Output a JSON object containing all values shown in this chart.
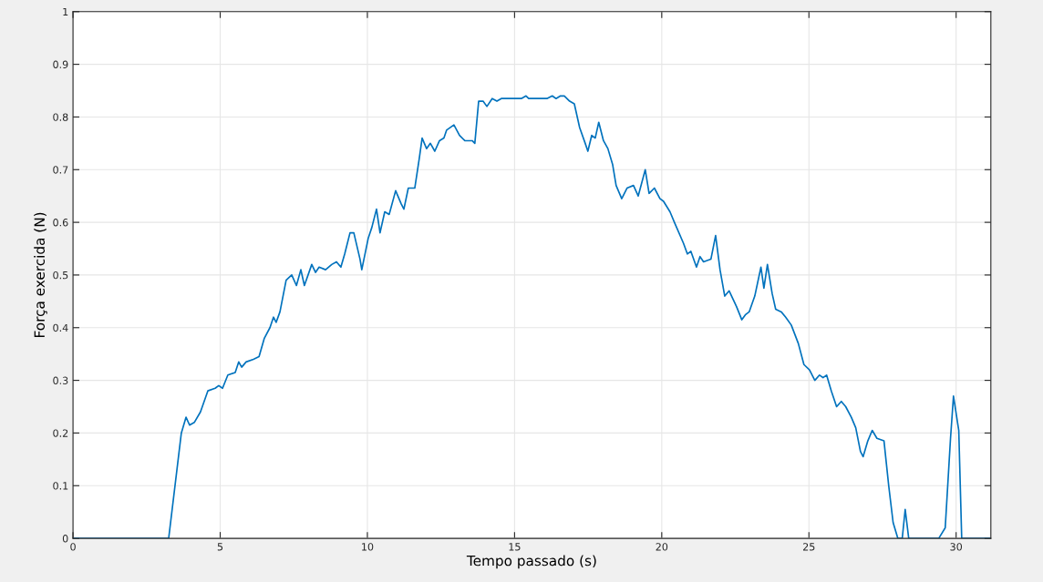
{
  "chart_data": {
    "type": "line",
    "xlabel": "Tempo passado (s)",
    "ylabel": "Força exercida (N)",
    "x": [
      0,
      3.25,
      3.68,
      3.84,
      3.96,
      4.12,
      4.33,
      4.58,
      4.83,
      4.95,
      5.08,
      5.26,
      5.51,
      5.63,
      5.73,
      5.88,
      6.13,
      6.32,
      6.5,
      6.69,
      6.81,
      6.9,
      7.03,
      7.24,
      7.43,
      7.59,
      7.74,
      7.86,
      8.11,
      8.24,
      8.36,
      8.58,
      8.79,
      8.95,
      9.1,
      9.23,
      9.41,
      9.54,
      9.75,
      9.81,
      10.03,
      10.15,
      10.31,
      10.43,
      10.59,
      10.74,
      10.96,
      11.15,
      11.24,
      11.39,
      11.61,
      11.76,
      11.86,
      12.01,
      12.14,
      12.29,
      12.45,
      12.6,
      12.69,
      12.94,
      13.13,
      13.31,
      13.56,
      13.65,
      13.78,
      13.93,
      14.06,
      14.24,
      14.4,
      14.55,
      15.23,
      15.39,
      15.48,
      16.1,
      16.28,
      16.41,
      16.56,
      16.69,
      16.87,
      17.03,
      17.21,
      17.4,
      17.49,
      17.62,
      17.74,
      17.86,
      18.02,
      18.17,
      18.33,
      18.45,
      18.64,
      18.82,
      19.04,
      19.2,
      19.44,
      19.57,
      19.75,
      19.94,
      20.06,
      20.28,
      20.43,
      20.74,
      20.87,
      20.99,
      21.18,
      21.3,
      21.42,
      21.67,
      21.83,
      21.98,
      22.14,
      22.29,
      22.54,
      22.72,
      22.85,
      22.97,
      23.16,
      23.37,
      23.47,
      23.59,
      23.75,
      23.87,
      24.06,
      24.21,
      24.4,
      24.64,
      24.83,
      25.02,
      25.2,
      25.36,
      25.48,
      25.6,
      25.76,
      25.94,
      26.1,
      26.25,
      26.44,
      26.59,
      26.75,
      26.84,
      27.0,
      27.15,
      27.31,
      27.55,
      27.71,
      27.86,
      28.02,
      28.17,
      28.27,
      28.39,
      29.41,
      29.63,
      29.81,
      29.91,
      30.09,
      30.19,
      31.18
    ],
    "series": [
      {
        "color": "#0072bd",
        "values": [
          0,
          0,
          0.2,
          0.23,
          0.215,
          0.22,
          0.24,
          0.28,
          0.285,
          0.29,
          0.285,
          0.31,
          0.315,
          0.335,
          0.325,
          0.335,
          0.34,
          0.345,
          0.38,
          0.4,
          0.42,
          0.41,
          0.43,
          0.49,
          0.5,
          0.48,
          0.51,
          0.48,
          0.52,
          0.505,
          0.515,
          0.51,
          0.52,
          0.525,
          0.515,
          0.54,
          0.58,
          0.58,
          0.53,
          0.51,
          0.57,
          0.59,
          0.625,
          0.58,
          0.62,
          0.615,
          0.66,
          0.635,
          0.625,
          0.665,
          0.665,
          0.72,
          0.76,
          0.74,
          0.75,
          0.735,
          0.755,
          0.76,
          0.775,
          0.785,
          0.765,
          0.755,
          0.755,
          0.75,
          0.83,
          0.83,
          0.82,
          0.835,
          0.83,
          0.835,
          0.835,
          0.84,
          0.835,
          0.835,
          0.84,
          0.835,
          0.84,
          0.84,
          0.83,
          0.825,
          0.78,
          0.75,
          0.735,
          0.765,
          0.76,
          0.79,
          0.755,
          0.74,
          0.71,
          0.67,
          0.645,
          0.665,
          0.67,
          0.65,
          0.7,
          0.655,
          0.665,
          0.645,
          0.64,
          0.62,
          0.6,
          0.56,
          0.54,
          0.545,
          0.515,
          0.535,
          0.525,
          0.53,
          0.575,
          0.51,
          0.46,
          0.47,
          0.44,
          0.415,
          0.425,
          0.43,
          0.46,
          0.515,
          0.475,
          0.52,
          0.465,
          0.435,
          0.43,
          0.42,
          0.405,
          0.37,
          0.33,
          0.32,
          0.3,
          0.31,
          0.305,
          0.31,
          0.28,
          0.25,
          0.26,
          0.25,
          0.23,
          0.21,
          0.165,
          0.155,
          0.185,
          0.205,
          0.19,
          0.185,
          0.1,
          0.03,
          0,
          0,
          0.055,
          0,
          0,
          0.02,
          0.19,
          0.27,
          0.205,
          0,
          0
        ]
      }
    ],
    "xlim": [
      0,
      31.18
    ],
    "ylim": [
      0,
      1
    ],
    "xticks": [
      0,
      5,
      10,
      15,
      20,
      25,
      30
    ],
    "yticks": [
      0,
      0.1,
      0.2,
      0.3,
      0.4,
      0.5,
      0.6,
      0.7,
      0.8,
      0.9,
      1
    ],
    "grid": true,
    "line_style": "solid"
  }
}
